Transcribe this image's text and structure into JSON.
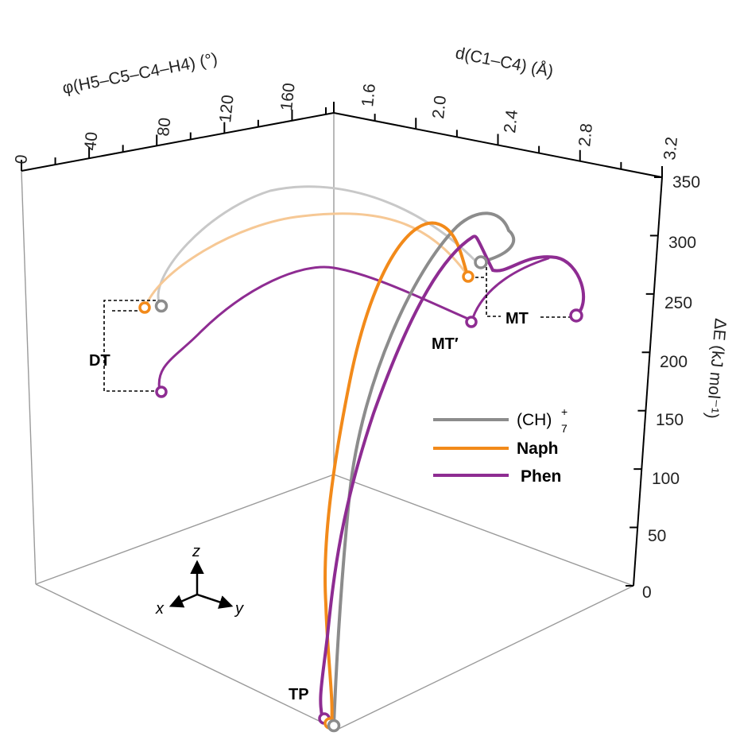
{
  "chart_data": {
    "type": "line",
    "projection": "3d",
    "axes": {
      "x": {
        "label": "φ(H5–C5–C4–H4) (°)",
        "ticks": [
          "0",
          "40",
          "80",
          "120",
          "160"
        ]
      },
      "y": {
        "label": "d(C1–C4) (Å)",
        "ticks": [
          "1.6",
          "2.0",
          "2.4",
          "2.8",
          "3.2"
        ]
      },
      "z": {
        "label": "ΔE (kJ mol⁻¹)",
        "ticks": [
          "0",
          "50",
          "100",
          "150",
          "200",
          "250",
          "300",
          "350"
        ],
        "range": [
          0,
          350
        ]
      }
    },
    "series": [
      {
        "name": "(CH)7+",
        "color": "#8c8c8c"
      },
      {
        "name": "Naph",
        "color": "#f28a1a"
      },
      {
        "name": "Phen",
        "color": "#8e2c92"
      }
    ],
    "points": [
      {
        "label": "DT",
        "values": {
          "(CH)7+": 251,
          "Naph": 250,
          "Phen": 178
        }
      },
      {
        "label": "MT",
        "values": {
          "(CH)7+": 279,
          "Naph": 268,
          "Phen": 237
        }
      },
      {
        "label": "MT′",
        "values": {
          "Phen": 232
        }
      },
      {
        "label": "TP",
        "values": {
          "(CH)7+": 0,
          "Naph": 0,
          "Phen": 0
        }
      }
    ],
    "annotations": [
      "DT",
      "MT",
      "MT′",
      "TP"
    ],
    "direction_labels": {
      "x": "x",
      "y": "y",
      "z": "z"
    },
    "legend": {
      "position": "center-right",
      "entries": [
        {
          "label": "(CH)",
          "sub": "7",
          "sup": "+",
          "color": "#8c8c8c"
        },
        {
          "label": "Naph",
          "color": "#f28a1a"
        },
        {
          "label": "Phen",
          "color": "#8e2c92"
        }
      ]
    },
    "grid": false
  }
}
